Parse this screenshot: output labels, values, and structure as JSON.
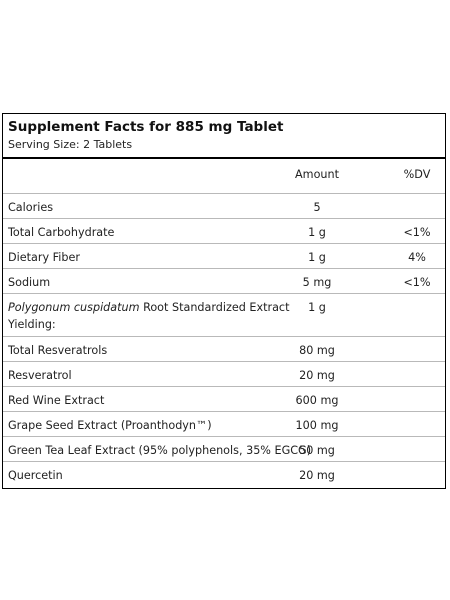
{
  "title": "Supplement Facts for 885 mg Tablet",
  "serving_size": "Serving Size: 2 Tablets",
  "columns": {
    "amount": "Amount",
    "dv": "%DV"
  },
  "rows": [
    {
      "name": "Calories",
      "amount": "5",
      "dv": ""
    },
    {
      "name": "Total Carbohydrate",
      "amount": "1 g",
      "dv": "<1%"
    },
    {
      "name": "Dietary Fiber",
      "amount": "1 g",
      "dv": "4%"
    },
    {
      "name": "Sodium",
      "amount": "5 mg",
      "dv": "<1%"
    },
    {
      "name_italic": "Polygonum cuspidatum",
      "name_rest": " Root Standardized Extract Yielding:",
      "amount": "1 g",
      "dv": ""
    },
    {
      "name": "Total Resveratrols",
      "amount": "80 mg",
      "dv": ""
    },
    {
      "name": "Resveratrol",
      "amount": "20 mg",
      "dv": ""
    },
    {
      "name": "Red Wine Extract",
      "amount": "600 mg",
      "dv": ""
    },
    {
      "name": "Grape Seed Extract (Proanthodyn™)",
      "amount": "100 mg",
      "dv": ""
    },
    {
      "name": "Green Tea Leaf Extract (95% polyphenols, 35% EGCG)",
      "amount": "50 mg",
      "dv": ""
    },
    {
      "name": "Quercetin",
      "amount": "20 mg",
      "dv": ""
    }
  ]
}
